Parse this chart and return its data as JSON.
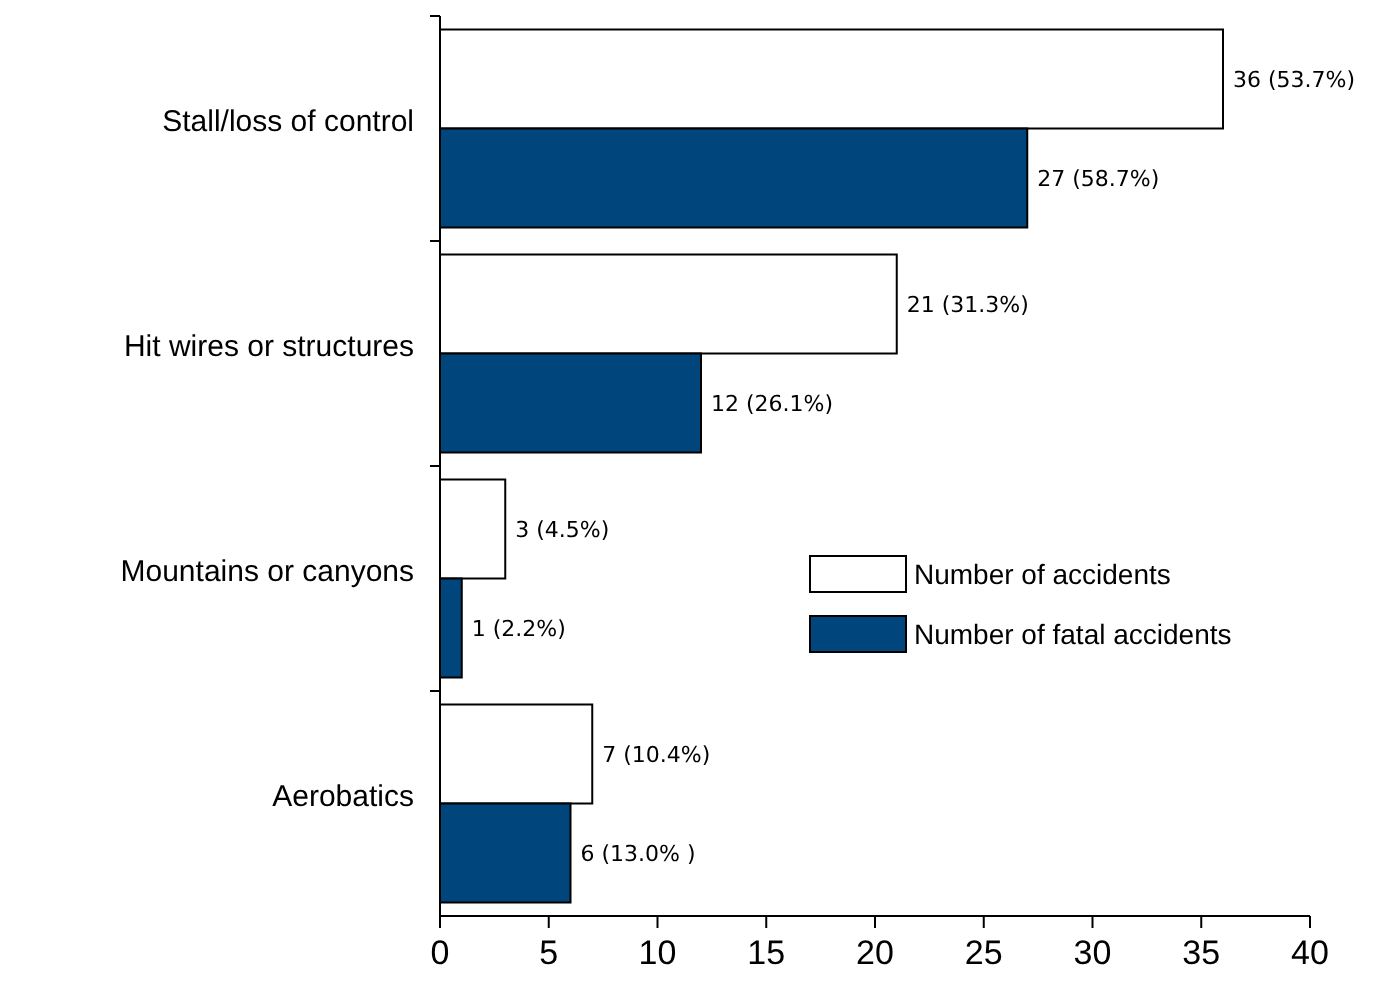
{
  "chart_data": {
    "type": "bar",
    "orientation": "horizontal",
    "categories": [
      "Stall/loss of control",
      "Hit wires or structures",
      "Mountains or canyons",
      "Aerobatics"
    ],
    "series": [
      {
        "name": "Number of accidents",
        "color": "#ffffff",
        "values": [
          36,
          21,
          3,
          7
        ],
        "value_labels": [
          "36 (53.7%)",
          "21 (31.3%)",
          "3 (4.5%)",
          "7 (10.4%)"
        ]
      },
      {
        "name": "Number of fatal accidents",
        "color": "#00457c",
        "values": [
          27,
          12,
          1,
          6
        ],
        "value_labels": [
          "27 (58.7%)",
          "12 (26.1%)",
          "1 (2.2%)",
          "6 (13.0% )"
        ]
      }
    ],
    "xlim": [
      0,
      40
    ],
    "xticks": [
      0,
      5,
      10,
      15,
      20,
      25,
      30,
      35,
      40
    ],
    "grid": false,
    "legend": "right"
  }
}
